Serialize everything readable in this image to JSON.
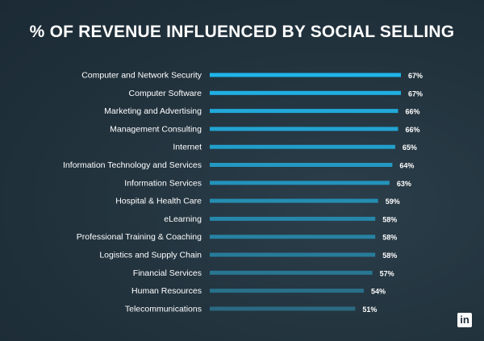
{
  "chart_data": {
    "type": "bar",
    "orientation": "horizontal",
    "title": "% OF REVENUE INFLUENCED BY SOCIAL SELLING",
    "categories": [
      "Computer and Network Security",
      "Computer Software",
      "Marketing and Advertising",
      "Management Consulting",
      "Internet",
      "Information Technology and Services",
      "Information Services",
      "Hospital & Health Care",
      "eLearning",
      "Professional Training & Coaching",
      "Logistics and Supply Chain",
      "Financial Services",
      "Human Resources",
      "Telecommunications"
    ],
    "values": [
      67,
      67,
      66,
      66,
      65,
      64,
      63,
      59,
      58,
      58,
      58,
      57,
      54,
      51
    ],
    "value_labels": [
      "67%",
      "67%",
      "66%",
      "66%",
      "65%",
      "64%",
      "63%",
      "59%",
      "58%",
      "58%",
      "58%",
      "57%",
      "54%",
      "51%"
    ],
    "xlim": [
      0,
      67
    ],
    "xlabel": "",
    "ylabel": "",
    "grid": false,
    "colors": {
      "bar_top": "#1fb5ea",
      "bar_bottom": "#2a6a82"
    }
  },
  "branding": {
    "logo_icon": "linkedin-icon",
    "logo_text": "in"
  }
}
